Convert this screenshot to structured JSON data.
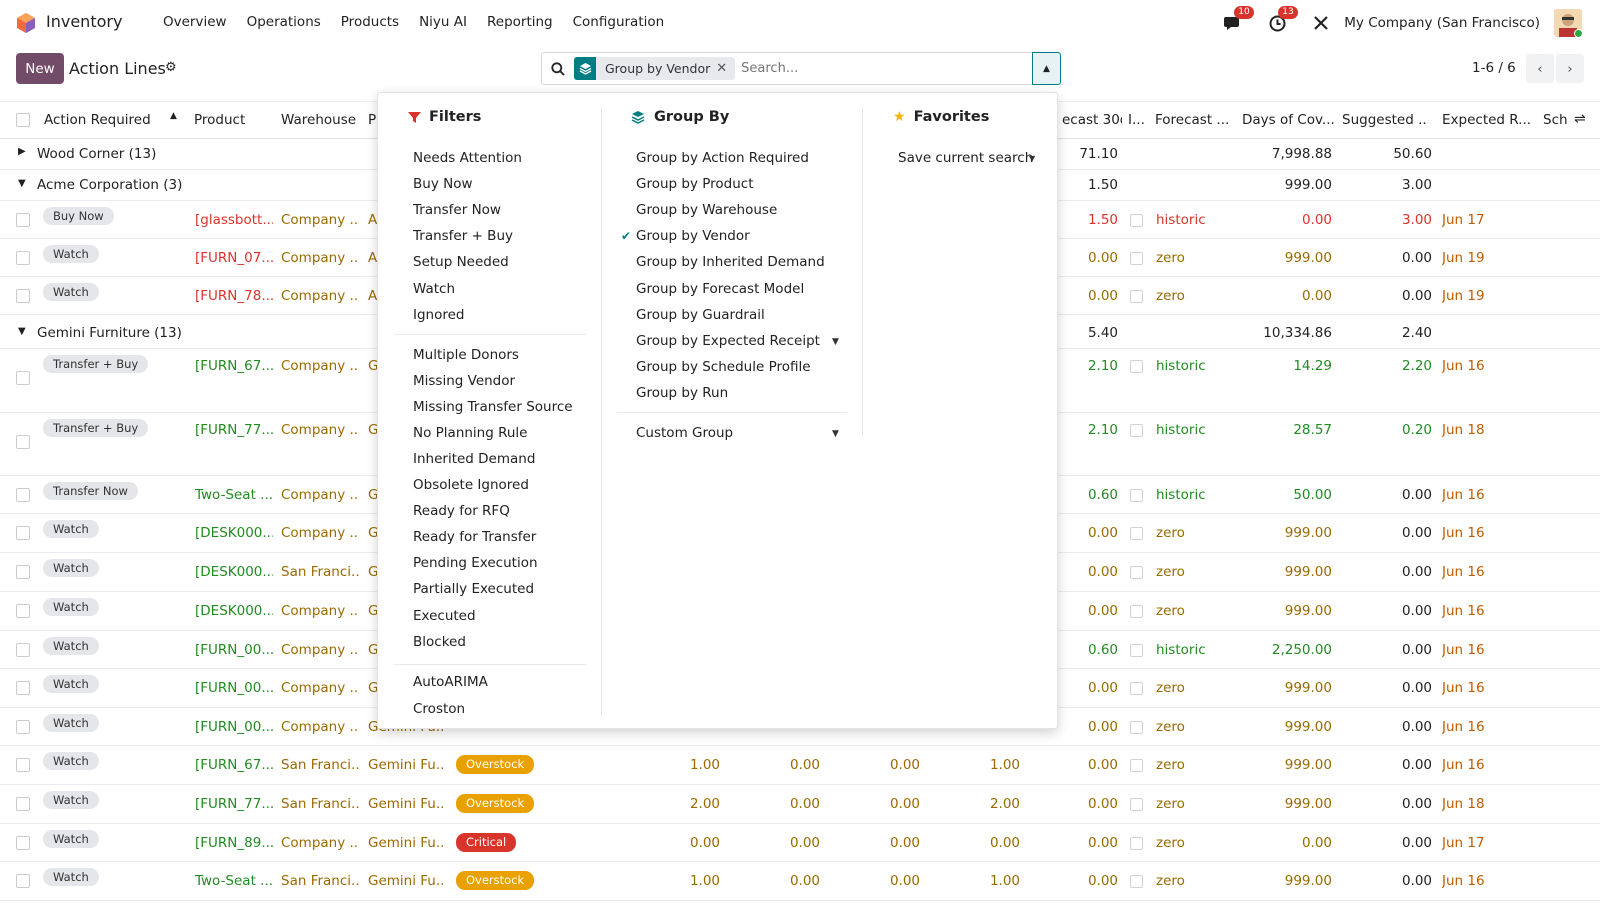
{
  "app": {
    "name": "Inventory",
    "menu": [
      "Overview",
      "Operations",
      "Products",
      "Niyu AI",
      "Reporting",
      "Configuration"
    ],
    "messages_badge": "10",
    "activity_badge": "13",
    "company": "My Company (San Francisco)"
  },
  "control": {
    "new_label": "New",
    "title": "Action Lines",
    "facet_label": "Group by Vendor",
    "search_placeholder": "Search...",
    "pager": "1-6 / 6"
  },
  "columns": [
    "Action Required",
    "Product",
    "Warehouse",
    "P",
    "ecast 30d",
    "I...",
    "Forecast ...",
    "Days of Cov...",
    "Suggested ...",
    "Expected R...",
    "Sch"
  ],
  "groups": [
    {
      "name": "Wood Corner (13)",
      "forecast30": "71.10",
      "days": "7,998.88",
      "suggested": "50.60",
      "open": false
    },
    {
      "name": "Acme Corporation (3)",
      "forecast30": "1.50",
      "days": "999.00",
      "suggested": "3.00",
      "open": true
    },
    {
      "name": "Gemini Furniture (13)",
      "forecast30": "5.40",
      "days": "10,334.86",
      "suggested": "2.40",
      "open": true
    }
  ],
  "acme_rows": [
    {
      "action": "Buy Now",
      "product": "[glassbott...",
      "warehouse": "Company ...",
      "p": "A",
      "f30": "1.50",
      "model": "historic",
      "days": "0.00",
      "sugg": "3.00",
      "exp": "Jun 17",
      "pcolor": "red"
    },
    {
      "action": "Watch",
      "product": "[FURN_07...",
      "warehouse": "Company ...",
      "p": "A",
      "f30": "0.00",
      "model": "zero",
      "days": "999.00",
      "sugg": "0.00",
      "exp": "Jun 19",
      "pcolor": "red"
    },
    {
      "action": "Watch",
      "product": "[FURN_78...",
      "warehouse": "Company ...",
      "p": "A",
      "f30": "0.00",
      "model": "zero",
      "days": "0.00",
      "sugg": "0.00",
      "exp": "Jun 19",
      "pcolor": "red"
    }
  ],
  "gemini_rows": [
    {
      "action": "Transfer + Buy",
      "product": "[FURN_67...",
      "warehouse": "Company ...",
      "p": "G",
      "f30": "2.10",
      "model": "historic",
      "days": "14.29",
      "sugg": "2.20",
      "exp": "Jun 16"
    },
    {
      "action": "Transfer + Buy",
      "product": "[FURN_77...",
      "warehouse": "Company ...",
      "p": "G",
      "f30": "2.10",
      "model": "historic",
      "days": "28.57",
      "sugg": "0.20",
      "exp": "Jun 18"
    },
    {
      "action": "Transfer Now",
      "product": "Two-Seat ...",
      "warehouse": "Company ...",
      "p": "G",
      "f30": "0.60",
      "model": "historic",
      "days": "50.00",
      "sugg": "0.00",
      "exp": "Jun 16"
    },
    {
      "action": "Watch",
      "product": "[DESK000...",
      "warehouse": "Company ...",
      "p": "G",
      "f30": "0.00",
      "model": "zero",
      "days": "999.00",
      "sugg": "0.00",
      "exp": "Jun 16"
    },
    {
      "action": "Watch",
      "product": "[DESK000...",
      "warehouse": "San Franci...",
      "p": "G",
      "f30": "0.00",
      "model": "zero",
      "days": "999.00",
      "sugg": "0.00",
      "exp": "Jun 16"
    },
    {
      "action": "Watch",
      "product": "[DESK000...",
      "warehouse": "Company ...",
      "p": "G",
      "f30": "0.00",
      "model": "zero",
      "days": "999.00",
      "sugg": "0.00",
      "exp": "Jun 16"
    },
    {
      "action": "Watch",
      "product": "[FURN_00...",
      "warehouse": "Company ...",
      "p": "G",
      "f30": "0.60",
      "model": "historic",
      "days": "2,250.00",
      "sugg": "0.00",
      "exp": "Jun 16"
    },
    {
      "action": "Watch",
      "product": "[FURN_00...",
      "warehouse": "Company ...",
      "p": "G",
      "f30": "0.00",
      "model": "zero",
      "days": "999.00",
      "sugg": "0.00",
      "exp": "Jun 16"
    },
    {
      "action": "Watch",
      "product": "[FURN_00...",
      "warehouse": "Company ...",
      "p": "Gemini Fu...",
      "f30": "0.00",
      "model": "zero",
      "days": "999.00",
      "sugg": "0.00",
      "exp": "Jun 16"
    },
    {
      "action": "Watch",
      "product": "[FURN_67...",
      "warehouse": "San Franci...",
      "p": "Gemini Fu...",
      "status": "Overstock",
      "q1": "1.00",
      "q2": "0.00",
      "q3": "0.00",
      "q4": "1.00",
      "f30": "0.00",
      "model": "zero",
      "days": "999.00",
      "sugg": "0.00",
      "exp": "Jun 16"
    },
    {
      "action": "Watch",
      "product": "[FURN_77...",
      "warehouse": "San Franci...",
      "p": "Gemini Fu...",
      "status": "Overstock",
      "q1": "2.00",
      "q2": "0.00",
      "q3": "0.00",
      "q4": "2.00",
      "f30": "0.00",
      "model": "zero",
      "days": "999.00",
      "sugg": "0.00",
      "exp": "Jun 18"
    },
    {
      "action": "Watch",
      "product": "[FURN_89...",
      "warehouse": "Company ...",
      "p": "Gemini Fu...",
      "status": "Critical",
      "q1": "0.00",
      "q2": "0.00",
      "q3": "0.00",
      "q4": "0.00",
      "f30": "0.00",
      "model": "zero",
      "days": "0.00",
      "sugg": "0.00",
      "exp": "Jun 17"
    },
    {
      "action": "Watch",
      "product": "Two-Seat ...",
      "warehouse": "San Franci...",
      "p": "Gemini Fu...",
      "status": "Overstock",
      "q1": "1.00",
      "q2": "0.00",
      "q3": "0.00",
      "q4": "1.00",
      "f30": "0.00",
      "model": "zero",
      "days": "999.00",
      "sugg": "0.00",
      "exp": "Jun 16"
    }
  ],
  "dropdown": {
    "filters_title": "Filters",
    "filters_a": [
      "Needs Attention",
      "Buy Now",
      "Transfer Now",
      "Transfer + Buy",
      "Setup Needed",
      "Watch",
      "Ignored"
    ],
    "filters_b": [
      "Multiple Donors",
      "Missing Vendor",
      "Missing Transfer Source",
      "No Planning Rule",
      "Inherited Demand",
      "Obsolete Ignored",
      "Ready for RFQ",
      "Ready for Transfer",
      "Pending Execution",
      "Partially Executed",
      "Executed",
      "Blocked"
    ],
    "filters_c": [
      "AutoARIMA",
      "Croston"
    ],
    "groupby_title": "Group By",
    "groupby": [
      "Group by Action Required",
      "Group by Product",
      "Group by Warehouse",
      "Group by Vendor",
      "Group by Inherited Demand",
      "Group by Forecast Model",
      "Group by Guardrail",
      "Group by Expected Receipt",
      "Group by Schedule Profile",
      "Group by Run"
    ],
    "custom_group": "Custom Group",
    "favorites_title": "Favorites",
    "save_search": "Save current search"
  },
  "colors": {
    "brand": "#714b67",
    "teal": "#017e84",
    "overstock": "#e9a100",
    "critical": "#d9342b"
  }
}
